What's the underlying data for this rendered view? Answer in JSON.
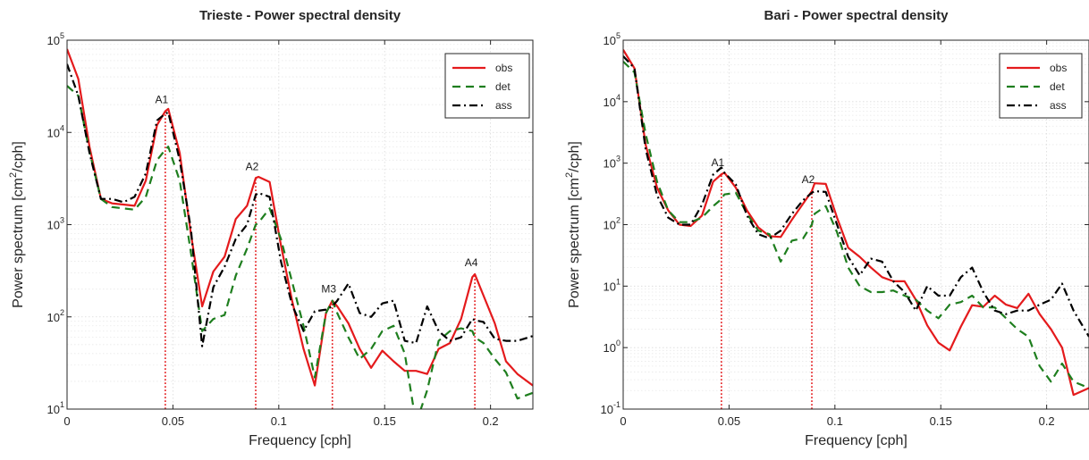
{
  "chart_data": [
    {
      "type": "line",
      "title": "Trieste - Power spectral density",
      "xlabel": "Frequency [cph]",
      "ylabel": "Power spectrum [cm2/cph]",
      "xlim": [
        0,
        0.22
      ],
      "ylim": [
        10,
        100000
      ],
      "yscale": "log",
      "grid": true,
      "legend_position": "top-right",
      "x_ticks": [
        "0",
        "0.05",
        "0.1",
        "0.15",
        "0.2"
      ],
      "y_ticks": [
        "10",
        "10",
        "10",
        "10",
        "10"
      ],
      "y_tick_exponents": [
        "1",
        "2",
        "3",
        "4",
        "5"
      ],
      "series": [
        {
          "name": "obs",
          "color": "#e41a1c",
          "style": "solid",
          "x": [
            0,
            0.0053,
            0.0106,
            0.016,
            0.0213,
            0.0266,
            0.0319,
            0.0372,
            0.0425,
            0.0464,
            0.0478,
            0.0532,
            0.0585,
            0.0638,
            0.0691,
            0.0744,
            0.0797,
            0.085,
            0.0891,
            0.0904,
            0.0957,
            0.101,
            0.1063,
            0.1117,
            0.117,
            0.1223,
            0.1253,
            0.1276,
            0.1329,
            0.1382,
            0.1436,
            0.1489,
            0.1542,
            0.1595,
            0.1648,
            0.1701,
            0.1755,
            0.1808,
            0.1861,
            0.1914,
            0.1926,
            0.1967,
            0.202,
            0.2073,
            0.2127,
            0.22
          ],
          "y": [
            80000,
            38000,
            7000,
            1900,
            1700,
            1650,
            1600,
            3000,
            12000,
            17000,
            18000,
            6000,
            800,
            130,
            310,
            450,
            1150,
            1600,
            3200,
            3300,
            2900,
            600,
            150,
            45,
            18,
            110,
            150,
            130,
            85,
            45,
            28,
            43,
            33,
            26,
            26,
            24,
            45,
            52,
            95,
            270,
            290,
            170,
            85,
            33,
            24,
            18
          ]
        },
        {
          "name": "det",
          "color": "#1e7e1e",
          "style": "dashed",
          "x": [
            0,
            0.0053,
            0.0106,
            0.016,
            0.0213,
            0.0266,
            0.0319,
            0.0372,
            0.0425,
            0.0464,
            0.0478,
            0.0532,
            0.0585,
            0.0638,
            0.0691,
            0.0744,
            0.0797,
            0.085,
            0.0891,
            0.0904,
            0.0957,
            0.101,
            0.1063,
            0.1117,
            0.117,
            0.1223,
            0.1253,
            0.1276,
            0.1329,
            0.1382,
            0.1436,
            0.1489,
            0.1542,
            0.1595,
            0.1648,
            0.1701,
            0.1755,
            0.1808,
            0.1861,
            0.1914,
            0.1926,
            0.1967,
            0.202,
            0.2073,
            0.2127,
            0.22
          ],
          "y": [
            32000,
            25000,
            6200,
            1900,
            1550,
            1500,
            1450,
            2000,
            5000,
            6500,
            7000,
            3000,
            500,
            70,
            95,
            105,
            280,
            550,
            1000,
            1050,
            1500,
            700,
            240,
            80,
            22,
            110,
            150,
            110,
            60,
            35,
            45,
            70,
            80,
            40,
            7,
            16,
            55,
            70,
            75,
            70,
            60,
            52,
            35,
            25,
            13,
            15
          ]
        },
        {
          "name": "ass",
          "color": "#000000",
          "style": "dashdot",
          "x": [
            0,
            0.0053,
            0.0106,
            0.016,
            0.0213,
            0.0266,
            0.0319,
            0.0372,
            0.0425,
            0.0464,
            0.0478,
            0.0532,
            0.0585,
            0.0638,
            0.0691,
            0.0744,
            0.0797,
            0.085,
            0.0891,
            0.0904,
            0.0957,
            0.101,
            0.1063,
            0.1117,
            0.117,
            0.1223,
            0.1253,
            0.1276,
            0.1329,
            0.1382,
            0.1436,
            0.1489,
            0.1542,
            0.1595,
            0.1648,
            0.1701,
            0.1755,
            0.1808,
            0.1861,
            0.1914,
            0.1926,
            0.1967,
            0.202,
            0.2073,
            0.2127,
            0.22
          ],
          "y": [
            55000,
            25000,
            6000,
            1900,
            1900,
            1750,
            2000,
            3600,
            13500,
            16000,
            16500,
            5000,
            900,
            48,
            210,
            350,
            700,
            1000,
            2100,
            2200,
            2000,
            400,
            135,
            70,
            115,
            120,
            130,
            150,
            230,
            110,
            100,
            140,
            150,
            55,
            52,
            130,
            70,
            55,
            60,
            95,
            92,
            88,
            58,
            55,
            55,
            62
          ]
        }
      ],
      "annotations": [
        {
          "label": "A1",
          "x": 0.0464
        },
        {
          "label": "A2",
          "x": 0.0891
        },
        {
          "label": "M3",
          "x": 0.1253
        },
        {
          "label": "A4",
          "x": 0.1926
        }
      ]
    },
    {
      "type": "line",
      "title": "Bari - Power spectral density",
      "xlabel": "Frequency [cph]",
      "ylabel": "Power spectrum [cm2/cph]",
      "xlim": [
        0,
        0.22
      ],
      "ylim": [
        0.1,
        100000
      ],
      "yscale": "log",
      "grid": true,
      "legend_position": "top-right",
      "x_ticks": [
        "0",
        "0.05",
        "0.1",
        "0.15",
        "0.2"
      ],
      "y_ticks": [
        "10",
        "10",
        "10",
        "10",
        "10",
        "10",
        "10"
      ],
      "y_tick_exponents": [
        "-1",
        "0",
        "1",
        "2",
        "3",
        "4",
        "5"
      ],
      "series": [
        {
          "name": "obs",
          "color": "#e41a1c",
          "style": "solid",
          "x": [
            0,
            0.0053,
            0.0106,
            0.016,
            0.0213,
            0.0266,
            0.0319,
            0.0372,
            0.0425,
            0.0464,
            0.0478,
            0.0532,
            0.0585,
            0.0638,
            0.0691,
            0.0744,
            0.0797,
            0.085,
            0.0891,
            0.0904,
            0.0957,
            0.101,
            0.1063,
            0.1117,
            0.117,
            0.1223,
            0.1276,
            0.1329,
            0.1382,
            0.1436,
            0.1489,
            0.1542,
            0.1595,
            0.1648,
            0.1701,
            0.1755,
            0.1808,
            0.1861,
            0.1914,
            0.1967,
            0.202,
            0.2073,
            0.2127,
            0.22
          ],
          "y": [
            70000,
            35000,
            2000,
            400,
            170,
            100,
            95,
            140,
            500,
            660,
            700,
            400,
            170,
            90,
            65,
            63,
            120,
            220,
            350,
            470,
            460,
            130,
            42,
            30,
            20,
            14,
            12,
            12,
            6,
            2.3,
            1.2,
            0.9,
            2.2,
            4.9,
            4.6,
            7,
            5,
            4.4,
            7.5,
            3.5,
            2,
            1,
            0.17,
            0.22
          ]
        },
        {
          "name": "det",
          "color": "#1e7e1e",
          "style": "dashed",
          "x": [
            0,
            0.0053,
            0.0106,
            0.016,
            0.0213,
            0.0266,
            0.0319,
            0.0372,
            0.0425,
            0.0464,
            0.0478,
            0.0532,
            0.0585,
            0.0638,
            0.0691,
            0.0744,
            0.0797,
            0.085,
            0.0891,
            0.0904,
            0.0957,
            0.101,
            0.1063,
            0.1117,
            0.117,
            0.1223,
            0.1276,
            0.1329,
            0.1382,
            0.1436,
            0.1489,
            0.1542,
            0.1595,
            0.1648,
            0.1701,
            0.1755,
            0.1808,
            0.1861,
            0.1914,
            0.1967,
            0.202,
            0.2073,
            0.2127,
            0.22
          ],
          "y": [
            45000,
            30000,
            3000,
            500,
            170,
            110,
            110,
            130,
            200,
            260,
            310,
            330,
            150,
            80,
            70,
            25,
            55,
            60,
            100,
            150,
            200,
            75,
            20,
            10,
            8,
            8,
            8.5,
            7,
            6,
            4,
            3,
            5,
            5.5,
            7,
            4.5,
            4.5,
            3,
            2,
            1.5,
            0.5,
            0.28,
            0.55,
            0.28,
            0.22
          ]
        },
        {
          "name": "ass",
          "color": "#000000",
          "style": "dashdot",
          "x": [
            0,
            0.0053,
            0.0106,
            0.016,
            0.0213,
            0.0266,
            0.0319,
            0.0372,
            0.0425,
            0.0464,
            0.0478,
            0.0532,
            0.0585,
            0.0638,
            0.0691,
            0.0744,
            0.0797,
            0.085,
            0.0891,
            0.0904,
            0.0957,
            0.101,
            0.1063,
            0.1117,
            0.117,
            0.1223,
            0.1276,
            0.1329,
            0.1382,
            0.1436,
            0.1489,
            0.1542,
            0.1595,
            0.1648,
            0.1701,
            0.1755,
            0.1808,
            0.1861,
            0.1914,
            0.1967,
            0.202,
            0.2073,
            0.2127,
            0.22
          ],
          "y": [
            55000,
            35000,
            1700,
            300,
            130,
            100,
            100,
            210,
            650,
            850,
            700,
            450,
            140,
            70,
            60,
            80,
            150,
            250,
            330,
            350,
            340,
            100,
            30,
            15,
            28,
            25,
            12,
            8,
            4,
            10,
            7,
            7,
            14,
            20,
            8,
            4,
            3.5,
            4,
            4,
            5,
            6,
            11,
            4,
            1.5
          ]
        }
      ],
      "annotations": [
        {
          "label": "A1",
          "x": 0.0464
        },
        {
          "label": "A2",
          "x": 0.0891
        }
      ]
    }
  ]
}
